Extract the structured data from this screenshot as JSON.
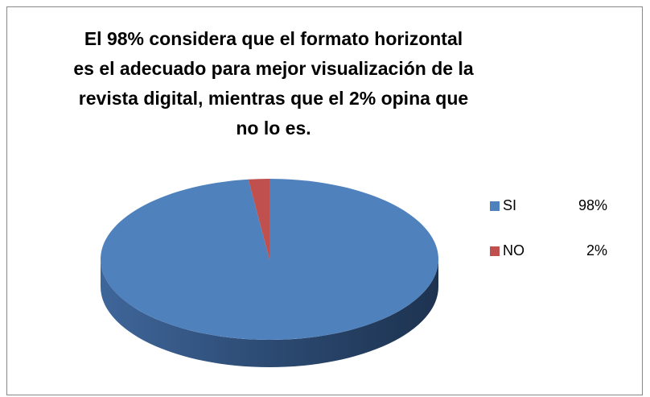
{
  "chart_data": {
    "type": "pie",
    "title": "El 98% considera que el formato horizontal es el adecuado para  mejor visualización de la revista digital, mientras que el 2% opina que no lo es.",
    "categories": [
      "SI",
      "NO"
    ],
    "values": [
      98,
      2
    ],
    "value_labels": [
      "98%",
      "2%"
    ],
    "colors": [
      "#4f81bd",
      "#c0504d"
    ],
    "legend": "right"
  }
}
